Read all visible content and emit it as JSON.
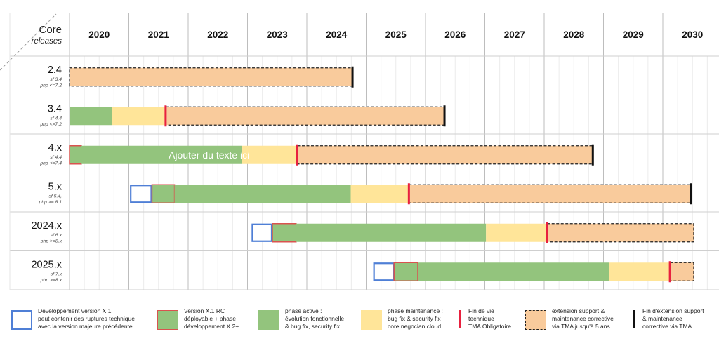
{
  "header": {
    "title": "Core",
    "subtitle": "releases"
  },
  "chart_data": {
    "type": "gantt",
    "years": [
      "2020",
      "2021",
      "2022",
      "2023",
      "2024",
      "2025",
      "2026",
      "2027",
      "2028",
      "2029",
      "2030"
    ],
    "x_range": [
      2019.88,
      2030.4
    ],
    "rows": [
      {
        "label": "2.4",
        "notes": [
          "sf 3.4",
          "php <=7.2"
        ],
        "segments": [
          {
            "type": "extension",
            "start": 2019.88,
            "end": 2024.65
          }
        ],
        "markers": [
          {
            "type": "end",
            "at": 2024.65
          }
        ]
      },
      {
        "label": "3.4",
        "notes": [
          "sf 4.4",
          "php <=7.2"
        ],
        "segments": [
          {
            "type": "active",
            "start": 2019.88,
            "end": 2020.6
          },
          {
            "type": "maintenance",
            "start": 2020.6,
            "end": 2021.5
          },
          {
            "type": "extension",
            "start": 2021.5,
            "end": 2026.2
          }
        ],
        "markers": [
          {
            "type": "eol",
            "at": 2021.5
          },
          {
            "type": "end",
            "at": 2026.2
          }
        ]
      },
      {
        "label": "4.x",
        "notes": [
          "sf 4.4",
          "php <=7.4"
        ],
        "segments": [
          {
            "type": "rc",
            "start": 2019.88,
            "end": 2020.08
          },
          {
            "type": "active",
            "start": 2020.08,
            "end": 2022.78
          },
          {
            "type": "maintenance",
            "start": 2022.78,
            "end": 2023.72
          },
          {
            "type": "extension",
            "start": 2023.72,
            "end": 2028.7
          }
        ],
        "markers": [
          {
            "type": "eol",
            "at": 2023.72
          },
          {
            "type": "end",
            "at": 2028.7
          }
        ],
        "annotation": {
          "text": "Ajouter du texte ici",
          "at": 2021.55
        }
      },
      {
        "label": "5.x",
        "notes": [
          "sf 5.4,",
          "php >= 8.1"
        ],
        "segments": [
          {
            "type": "dev",
            "start": 2020.9,
            "end": 2021.27
          },
          {
            "type": "rc",
            "start": 2021.27,
            "end": 2021.65
          },
          {
            "type": "active",
            "start": 2021.65,
            "end": 2024.62
          },
          {
            "type": "maintenance",
            "start": 2024.62,
            "end": 2025.6
          },
          {
            "type": "extension",
            "start": 2025.6,
            "end": 2030.35
          }
        ],
        "markers": [
          {
            "type": "eol",
            "at": 2025.6
          },
          {
            "type": "end",
            "at": 2030.35
          }
        ]
      },
      {
        "label": "2024.x",
        "notes": [
          "sf 6.x",
          "php >=8.x"
        ],
        "segments": [
          {
            "type": "dev",
            "start": 2022.95,
            "end": 2023.3
          },
          {
            "type": "rc",
            "start": 2023.3,
            "end": 2023.7
          },
          {
            "type": "active",
            "start": 2023.7,
            "end": 2026.9
          },
          {
            "type": "maintenance",
            "start": 2026.9,
            "end": 2027.93
          },
          {
            "type": "extension",
            "start": 2027.93,
            "end": 2030.4
          }
        ],
        "markers": [
          {
            "type": "eol",
            "at": 2027.93
          }
        ]
      },
      {
        "label": "2025.x",
        "notes": [
          "sf 7.x",
          "php >=8.x"
        ],
        "segments": [
          {
            "type": "dev",
            "start": 2025.0,
            "end": 2025.35
          },
          {
            "type": "rc",
            "start": 2025.35,
            "end": 2025.75
          },
          {
            "type": "active",
            "start": 2025.75,
            "end": 2028.98
          },
          {
            "type": "maintenance",
            "start": 2028.98,
            "end": 2030.0
          },
          {
            "type": "extension",
            "start": 2030.0,
            "end": 2030.4
          }
        ],
        "markers": [
          {
            "type": "eol",
            "at": 2030.0
          }
        ]
      }
    ],
    "colors": {
      "active": "#93c47d",
      "maintenance": "#ffe599",
      "extension": "#f9cb9c",
      "rc_border": "#d9534f",
      "dev_border": "#4f7fd6",
      "eol": "#e8213f",
      "end": "#111111",
      "grid": "#d0d0d0"
    }
  },
  "legend": [
    {
      "key": "dev",
      "text": "Développement version X.1,\npeut contenir  des ruptures technique\navec la version majeure précédente."
    },
    {
      "key": "rc",
      "text": "Version X.1 RC\ndéployable + phase\ndéveloppement X.2+"
    },
    {
      "key": "active",
      "text": "phase active :\névolution fonctionnelle\n& bug fix, security fix"
    },
    {
      "key": "maint",
      "text": "phase maintenance :\nbug fix & security fix\ncore negocian.cloud"
    },
    {
      "key": "eol",
      "text": "Fin de vie\ntechnique\nTMA Obligatoire"
    },
    {
      "key": "ext",
      "text": "extension support &\nmaintenance corrective\nvia TMA jusqu'à 5 ans."
    },
    {
      "key": "end",
      "text": "Fin d'extension support\n& maintenance\ncorrective via TMA"
    }
  ]
}
